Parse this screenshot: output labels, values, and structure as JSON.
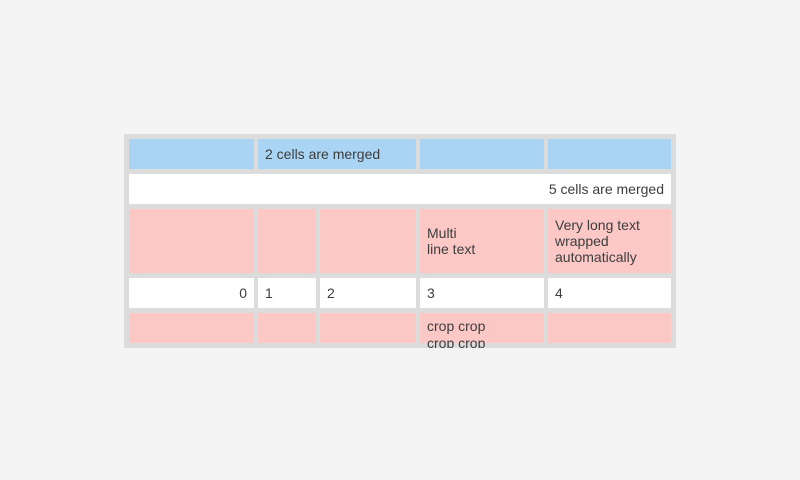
{
  "widget": {
    "name": "table",
    "colors": {
      "page_background": "#f4f4f4",
      "table_border_gray": "#dcdcdc",
      "header_blue": "#a9d4f4",
      "row_pink": "#fbc8c6",
      "row_white": "#ffffff",
      "text": "#3d3d3d"
    },
    "row1": {
      "cell1": "",
      "merged_cell": "2 cells are merged",
      "cell4": "",
      "cell5": ""
    },
    "row2": {
      "merged_cell": "5 cells are merged"
    },
    "row3": {
      "cell1": "",
      "cell2": "",
      "cell3": "",
      "cell4": "Multi\nline text",
      "cell5": "Very long text wrapped automatically"
    },
    "row4": {
      "cell1": "0",
      "cell2": "1",
      "cell3": "2",
      "cell4": "3",
      "cell5": "4"
    },
    "row5": {
      "cell1": "",
      "cell2": "",
      "cell3": "",
      "cell4": "crop crop\ncrop crop",
      "cell5": ""
    }
  }
}
